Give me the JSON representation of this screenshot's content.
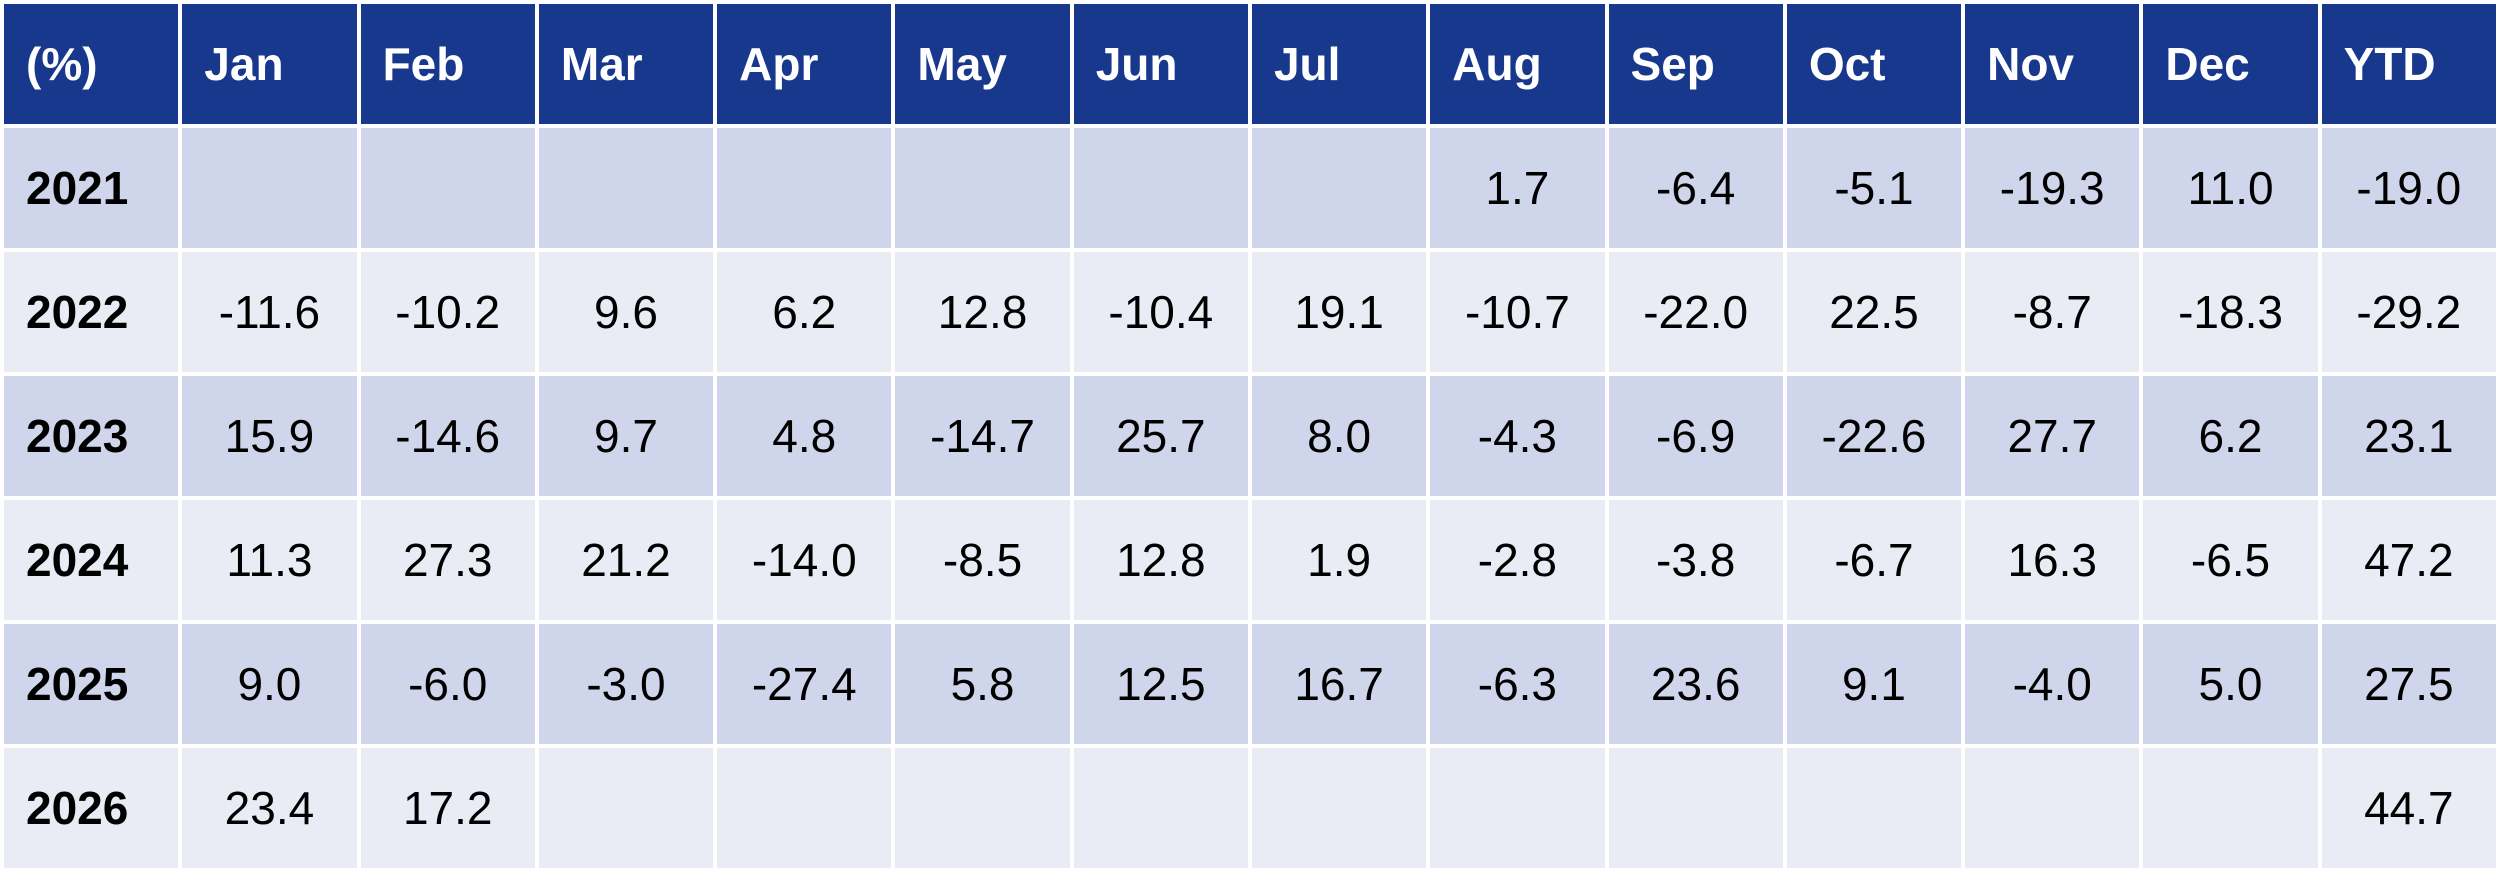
{
  "table": {
    "header": [
      "(%)",
      "Jan",
      "Feb",
      "Mar",
      "Apr",
      "May",
      "Jun",
      "Jul",
      "Aug",
      "Sep",
      "Oct",
      "Nov",
      "Dec",
      "YTD"
    ],
    "rows": [
      [
        "2021",
        null,
        null,
        null,
        null,
        null,
        null,
        null,
        "1.7",
        "-6.4",
        "-5.1",
        "-19.3",
        "11.0",
        "-19.0"
      ],
      [
        "2022",
        "-11.6",
        "-10.2",
        "9.6",
        "6.2",
        "12.8",
        "-10.4",
        "19.1",
        "-10.7",
        "-22.0",
        "22.5",
        "-8.7",
        "-18.3",
        "-29.2"
      ],
      [
        "2023",
        "15.9",
        "-14.6",
        "9.7",
        "4.8",
        "-14.7",
        "25.7",
        "8.0",
        "-4.3",
        "-6.9",
        "-22.6",
        "27.7",
        "6.2",
        "23.1"
      ],
      [
        "2024",
        "11.3",
        "27.3",
        "21.2",
        "-14.0",
        "-8.5",
        "12.8",
        "1.9",
        "-2.8",
        "-3.8",
        "-6.7",
        "16.3",
        "-6.5",
        "47.2"
      ],
      [
        "2025",
        "9.0",
        "-6.0",
        "-3.0",
        "-27.4",
        "5.8",
        "12.5",
        "16.7",
        "-6.3",
        "23.6",
        "9.1",
        "-4.0",
        "5.0",
        "27.5"
      ],
      [
        "2026",
        "23.4",
        "17.2",
        null,
        null,
        null,
        null,
        null,
        null,
        null,
        null,
        null,
        null,
        "44.7"
      ]
    ]
  }
}
